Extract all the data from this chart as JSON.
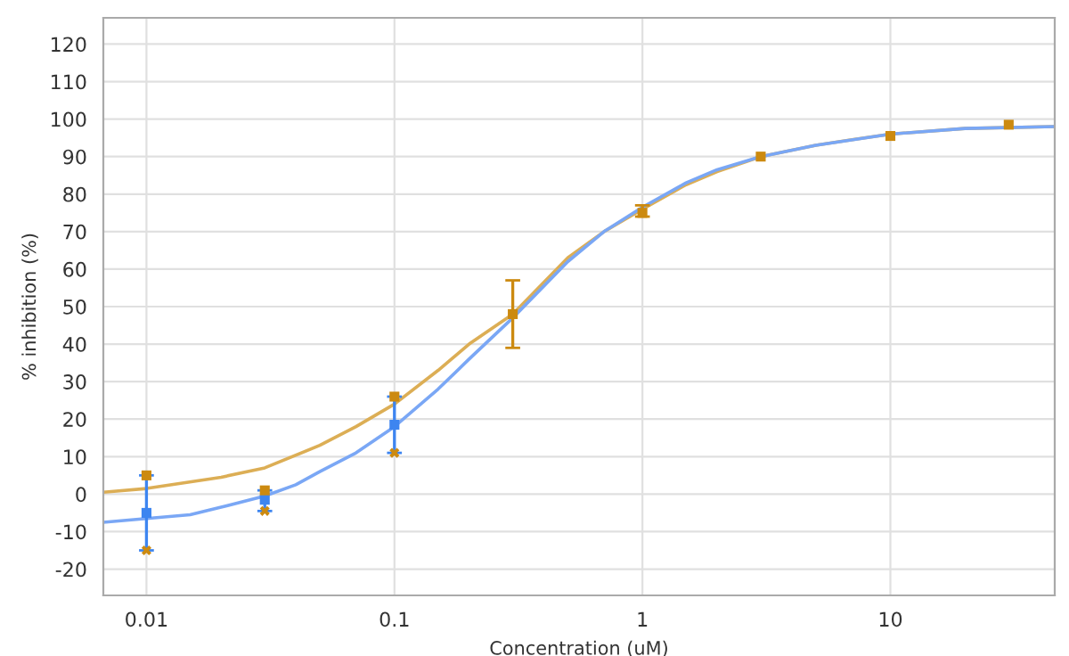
{
  "chart_data": {
    "type": "scatter",
    "xlabel": "Concentration (uM)",
    "ylabel": "% inhibition (%)",
    "log": "x",
    "grid": true,
    "xlim": [
      0.0067,
      46
    ],
    "xticks": [
      0.01,
      0.1,
      1,
      10
    ],
    "ylim": [
      -27,
      127
    ],
    "yticks": [
      -20,
      -10,
      0,
      10,
      20,
      30,
      40,
      50,
      60,
      70,
      80,
      90,
      100,
      110,
      120
    ],
    "series": [
      {
        "type": "line",
        "color": "#dcae55",
        "marker": "none",
        "x": [
          0.0067,
          0.01,
          0.02,
          0.03,
          0.05,
          0.07,
          0.1,
          0.15,
          0.2,
          0.3,
          0.5,
          0.7,
          1,
          1.5,
          2,
          3,
          5,
          7,
          10,
          20,
          46
        ],
        "values": [
          0.5,
          1.5,
          4.5,
          7,
          13,
          18,
          24,
          33,
          40,
          48,
          63,
          70,
          76,
          82.5,
          86,
          90,
          93,
          94.5,
          96,
          97.5,
          98
        ]
      },
      {
        "type": "line",
        "color": "#7aa7f5",
        "marker": "none",
        "x": [
          0.0067,
          0.01,
          0.015,
          0.02,
          0.03,
          0.04,
          0.05,
          0.07,
          0.1,
          0.15,
          0.2,
          0.3,
          0.5,
          0.7,
          1,
          1.5,
          2,
          3,
          5,
          10,
          20,
          46
        ],
        "values": [
          -7.5,
          -6.5,
          -5.5,
          -3.5,
          -0.5,
          2.5,
          6,
          11,
          18,
          28,
          36,
          47,
          62,
          70,
          76.5,
          83,
          86.5,
          90,
          93,
          96,
          97.5,
          98
        ]
      },
      {
        "color": "#3d85f0",
        "marker": "square",
        "x": [
          0.01,
          0.03,
          0.1
        ],
        "values": [
          -5,
          -1.5,
          18.5
        ],
        "errors": [
          [
            -15,
            5
          ],
          [
            -4.5,
            1
          ],
          [
            11,
            26
          ]
        ]
      },
      {
        "color": "#cc8a10",
        "marker": "square",
        "x": [
          0.01,
          0.03,
          0.1,
          0.3,
          1,
          3,
          10,
          30
        ],
        "values": [
          5,
          1,
          26,
          48,
          75,
          90,
          95.5,
          98.5
        ],
        "errors": [
          null,
          null,
          null,
          [
            39,
            57
          ],
          [
            74,
            77
          ],
          null,
          null,
          null
        ]
      },
      {
        "color": "#cc8a10",
        "marker": "cross",
        "x": [
          0.01,
          0.03,
          0.1
        ],
        "values": [
          -15,
          -4.5,
          11
        ]
      }
    ]
  }
}
